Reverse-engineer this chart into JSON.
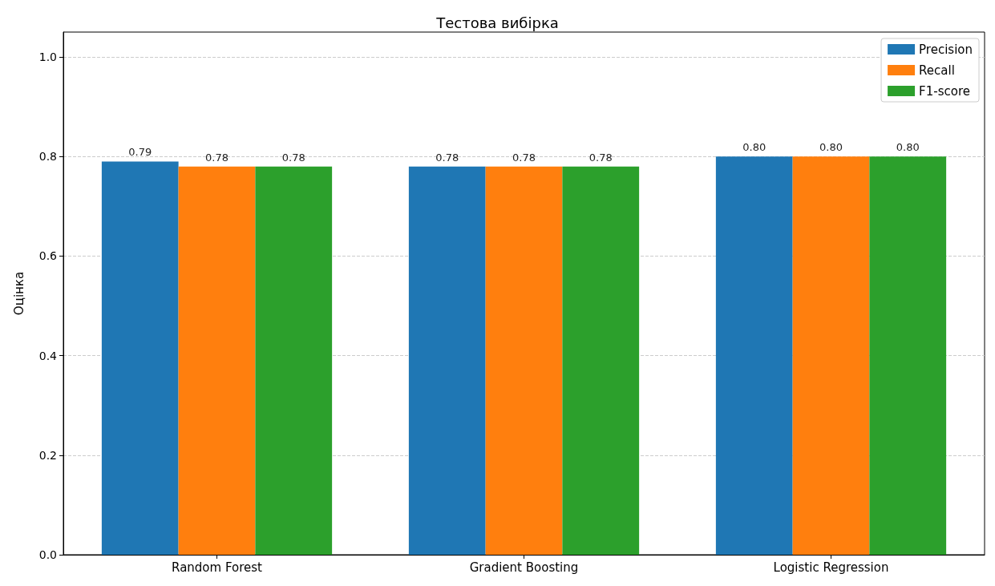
{
  "chart_data": {
    "type": "bar",
    "title": "Тестова вибірка",
    "ylabel": "Оцінка",
    "categories": [
      "Random Forest",
      "Gradient Boosting",
      "Logistic Regression"
    ],
    "series": [
      {
        "name": "Precision",
        "color": "#1f77b4",
        "values": [
          0.79,
          0.78,
          0.8
        ],
        "value_labels": [
          "0.79",
          "0.78",
          "0.80"
        ]
      },
      {
        "name": "Recall",
        "color": "#ff7f0e",
        "values": [
          0.78,
          0.78,
          0.8
        ],
        "value_labels": [
          "0.78",
          "0.78",
          "0.80"
        ]
      },
      {
        "name": "F1-score",
        "color": "#2ca02c",
        "values": [
          0.78,
          0.78,
          0.8
        ],
        "value_labels": [
          "0.78",
          "0.78",
          "0.80"
        ]
      }
    ],
    "ylim": [
      0,
      1.05
    ],
    "yticks": [
      {
        "value": 0,
        "label": "0.0"
      },
      {
        "value": 0.2,
        "label": "0.2"
      },
      {
        "value": 0.4,
        "label": "0.4"
      },
      {
        "value": 0.6,
        "label": "0.6"
      },
      {
        "value": 0.8,
        "label": "0.8"
      },
      {
        "value": 1.0,
        "label": "1.0"
      }
    ],
    "grid": "y",
    "legend": "top right"
  }
}
